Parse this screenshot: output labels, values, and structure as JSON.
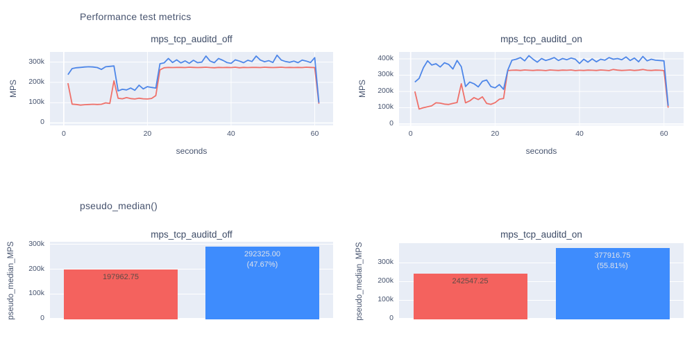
{
  "page": {
    "section1_title": "Performance test metrics",
    "section2_title": "pseudo_median()"
  },
  "colors": {
    "line_red": "#ef7069",
    "line_blue": "#4d86e8",
    "bar_red": "#f4625e",
    "bar_blue": "#3e8cfd",
    "plot_background": "#e8edf6",
    "grid": "#ffffff",
    "text": "#45526d"
  },
  "chart_data": [
    {
      "panel": "top-left",
      "type": "line",
      "title": "mps_tcp_auditd_off",
      "xlabel": "seconds",
      "ylabel": "MPS",
      "x_start": 1,
      "x_step": 1,
      "xlim": [
        -3.3,
        64.4
      ],
      "ylim": [
        -12000,
        350000
      ],
      "xticks": [
        {
          "v": 0,
          "label": "0"
        },
        {
          "v": 20,
          "label": "20"
        },
        {
          "v": 40,
          "label": "40"
        },
        {
          "v": 60,
          "label": "60"
        }
      ],
      "yticks": [
        {
          "v": 0,
          "label": "0"
        },
        {
          "v": 100000,
          "label": "100k"
        },
        {
          "v": 200000,
          "label": "200k"
        },
        {
          "v": 300000,
          "label": "300k"
        }
      ],
      "values_scale": 1000,
      "series": [
        {
          "color": "red",
          "values_k": [
            196,
            93,
            91,
            88,
            90,
            91,
            92,
            91,
            92,
            99,
            96,
            208,
            122,
            119,
            125,
            120,
            118,
            122,
            119,
            118,
            121,
            135,
            262,
            272,
            274,
            273,
            274,
            274,
            273,
            275,
            274,
            273,
            274,
            275,
            273,
            272,
            274,
            273,
            274,
            273,
            275,
            272,
            274,
            273,
            274,
            274,
            273,
            275,
            274,
            273,
            274,
            275,
            273,
            274,
            273,
            274,
            273,
            275,
            274,
            273,
            95
          ]
        },
        {
          "color": "blue",
          "values_k": [
            238,
            268,
            272,
            274,
            276,
            277,
            276,
            273,
            264,
            277,
            279,
            281,
            158,
            166,
            163,
            172,
            161,
            186,
            168,
            179,
            175,
            172,
            292,
            296,
            318,
            298,
            311,
            296,
            306,
            294,
            309,
            297,
            300,
            330,
            305,
            297,
            318,
            309,
            298,
            294,
            311,
            305,
            297,
            309,
            303,
            330,
            310,
            302,
            307,
            298,
            334,
            310,
            303,
            299,
            305,
            297,
            310,
            305,
            298,
            322,
            100
          ]
        }
      ]
    },
    {
      "panel": "top-right",
      "type": "line",
      "title": "mps_tcp_auditd_on",
      "xlabel": "seconds",
      "ylabel": "MPS",
      "x_start": 1,
      "x_step": 1,
      "xlim": [
        -2.75,
        64.65
      ],
      "ylim": [
        -8500,
        442500
      ],
      "xticks": [
        {
          "v": 0,
          "label": "0"
        },
        {
          "v": 20,
          "label": "20"
        },
        {
          "v": 40,
          "label": "40"
        },
        {
          "v": 60,
          "label": "60"
        }
      ],
      "yticks": [
        {
          "v": 0,
          "label": "0"
        },
        {
          "v": 100000,
          "label": "100k"
        },
        {
          "v": 200000,
          "label": "200k"
        },
        {
          "v": 300000,
          "label": "300k"
        },
        {
          "v": 400000,
          "label": "400k"
        }
      ],
      "values_scale": 1000,
      "series": [
        {
          "color": "red",
          "values_k": [
            200,
            92,
            100,
            106,
            112,
            130,
            128,
            122,
            120,
            127,
            132,
            247,
            130,
            142,
            162,
            150,
            167,
            127,
            121,
            131,
            152,
            157,
            328,
            330,
            331,
            329,
            332,
            330,
            329,
            331,
            330,
            328,
            332,
            330,
            329,
            331,
            330,
            332,
            328,
            330,
            329,
            331,
            330,
            329,
            332,
            330,
            328,
            335,
            331,
            329,
            330,
            332,
            329,
            331,
            335,
            330,
            329,
            331,
            330,
            328,
            100
          ]
        },
        {
          "color": "blue",
          "values_k": [
            258,
            280,
            345,
            388,
            362,
            370,
            350,
            376,
            366,
            338,
            390,
            352,
            230,
            258,
            247,
            228,
            262,
            270,
            230,
            222,
            242,
            213,
            330,
            392,
            398,
            408,
            388,
            420,
            398,
            380,
            402,
            390,
            398,
            408,
            390,
            402,
            395,
            405,
            398,
            372,
            398,
            380,
            400,
            382,
            398,
            392,
            408,
            398,
            402,
            395,
            412,
            390,
            405,
            382,
            415,
            388,
            398,
            392,
            390,
            388,
            112
          ]
        }
      ]
    },
    {
      "panel": "bottom-left",
      "type": "bar",
      "title": "mps_tcp_auditd_off",
      "ylabel": "pseudo_median_MPS",
      "ylim": [
        -3000,
        311000
      ],
      "yticks": [
        {
          "v": 0,
          "label": "0"
        },
        {
          "v": 100000,
          "label": "100k"
        },
        {
          "v": 200000,
          "label": "200k"
        },
        {
          "v": 300000,
          "label": "300k"
        }
      ],
      "bars": [
        {
          "color": "red",
          "value": 197962.75,
          "label": "197962.75",
          "pct_label": ""
        },
        {
          "color": "blue",
          "value": 292325.0,
          "label": "292325.00",
          "pct_label": "(47.67%)"
        }
      ]
    },
    {
      "panel": "bottom-right",
      "type": "bar",
      "title": "mps_tcp_auditd_on",
      "ylabel": "pseudo_median_MPS",
      "ylim": [
        -3700,
        404000
      ],
      "yticks": [
        {
          "v": 0,
          "label": "0"
        },
        {
          "v": 100000,
          "label": "100k"
        },
        {
          "v": 200000,
          "label": "200k"
        },
        {
          "v": 300000,
          "label": "300k"
        }
      ],
      "bars": [
        {
          "color": "red",
          "value": 242547.25,
          "label": "242547.25",
          "pct_label": ""
        },
        {
          "color": "blue",
          "value": 377916.75,
          "label": "377916.75",
          "pct_label": "(55.81%)"
        }
      ]
    }
  ]
}
